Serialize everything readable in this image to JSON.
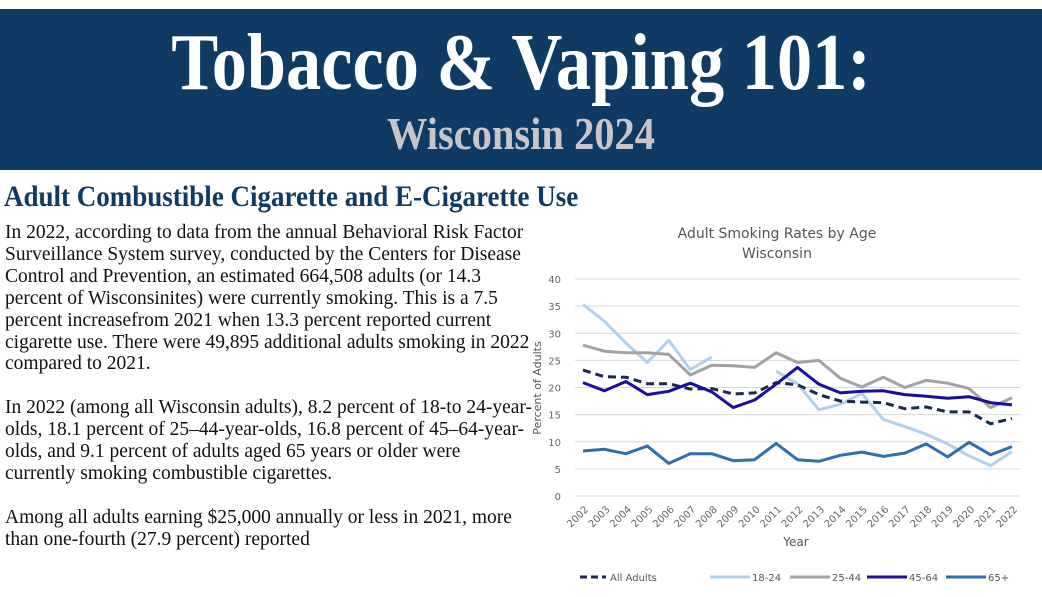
{
  "banner": {
    "title": "Tobacco & Vaping 101:",
    "subtitle": "Wisconsin 2024",
    "background_color": "#0e3a63",
    "subtitle_color": "#c9c6cb"
  },
  "section": {
    "heading": "Adult Combustible Cigarette and E-Cigarette Use",
    "paragraphs": [
      "In 2022, according to data from the annual Behavioral Risk Factor Surveillance System survey, conducted by the Centers for Disease Control and Prevention, an estimated 664,508 adults (or 14.3 percent of Wisconsinites) were currently smoking. This is a 7.5 percent increasefrom 2021 when 13.3 percent reported current cigarette use. There were 49,895 additional adults smoking in 2022 compared to 2021.",
      "In 2022 (among all Wisconsin adults), 8.2 percent of 18-to 24-year-olds, 18.1 percent of 25–44-year-olds, 16.8 percent of 45–64-year-olds, and 9.1 percent of adults aged 65 years or older were currently smoking combustible cigarettes.",
      "Among all adults earning $25,000 annually or less in 2021, more than one-fourth (27.9 percent) reported"
    ]
  },
  "chart_data": {
    "type": "line",
    "title": "Adult Smoking Rates by Age",
    "subtitle": "Wisconsin",
    "xlabel": "Year",
    "ylabel": "Percent of Adults",
    "ylim": [
      0,
      40
    ],
    "yticks": [
      0,
      5,
      10,
      15,
      20,
      25,
      30,
      35,
      40
    ],
    "grid": true,
    "legend_position": "bottom",
    "x": [
      "2002",
      "2003",
      "2004",
      "2005",
      "2006",
      "2007",
      "2008",
      "2009",
      "2010",
      "2011",
      "2012",
      "2013",
      "2014",
      "2015",
      "2016",
      "2017",
      "2018",
      "2019",
      "2020",
      "2021",
      "2022"
    ],
    "series": [
      {
        "name": "All Adults",
        "color": "#1b2a4a",
        "dash": true,
        "values": [
          23.2,
          22.0,
          21.9,
          20.7,
          20.7,
          19.7,
          19.8,
          18.8,
          19.0,
          20.9,
          20.5,
          18.7,
          17.5,
          17.3,
          17.2,
          16.1,
          16.4,
          15.5,
          15.5,
          13.3,
          14.3
        ]
      },
      {
        "name": "18-24",
        "color": "#b4cfe8",
        "dash": false,
        "values": [
          35.3,
          32.2,
          28.2,
          24.6,
          28.7,
          23.3,
          25.6,
          null,
          null,
          23.0,
          20.7,
          15.9,
          16.9,
          18.9,
          14.1,
          12.8,
          11.4,
          9.6,
          7.4,
          5.6,
          8.2
        ]
      },
      {
        "name": "25-44",
        "color": "#a2a2a2",
        "dash": false,
        "values": [
          27.8,
          26.7,
          26.4,
          26.4,
          26.1,
          22.3,
          24.1,
          24.0,
          23.7,
          26.4,
          24.6,
          25.0,
          21.7,
          20.1,
          21.9,
          20.0,
          21.3,
          20.8,
          19.8,
          16.3,
          18.1
        ]
      },
      {
        "name": "45-64",
        "color": "#1a0ea0",
        "dash": false,
        "values": [
          20.9,
          19.4,
          21.1,
          18.7,
          19.3,
          20.8,
          19.2,
          16.3,
          17.7,
          20.6,
          23.7,
          20.6,
          19.0,
          19.3,
          19.4,
          18.7,
          18.4,
          18.0,
          18.3,
          17.2,
          16.8
        ]
      },
      {
        "name": "65+",
        "color": "#2e6fad",
        "dash": false,
        "values": [
          8.3,
          8.6,
          7.8,
          9.2,
          6.0,
          7.8,
          7.8,
          6.5,
          6.7,
          9.7,
          6.7,
          6.4,
          7.5,
          8.1,
          7.3,
          7.9,
          9.6,
          7.2,
          9.9,
          7.6,
          9.1
        ]
      }
    ]
  }
}
